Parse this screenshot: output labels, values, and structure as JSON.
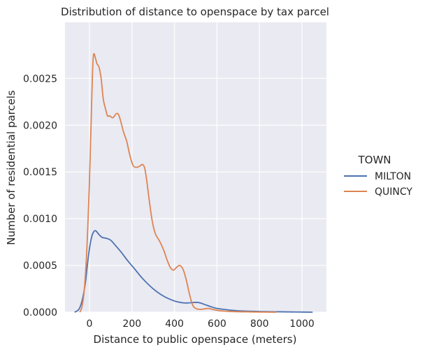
{
  "chart_data": {
    "type": "line",
    "title": "Distribution of distance to openspace by tax parcel",
    "xlabel": "Distance to public openspace (meters)",
    "ylabel": "Number of residential parcels",
    "xlim": [
      -115,
      1115
    ],
    "ylim": [
      0,
      0.0031
    ],
    "xticks": [
      0,
      200,
      400,
      600,
      800,
      1000
    ],
    "xtick_labels": [
      "0",
      "200",
      "400",
      "600",
      "800",
      "1000"
    ],
    "yticks": [
      0.0,
      0.0005,
      0.001,
      0.0015,
      0.002,
      0.0025
    ],
    "ytick_labels": [
      "0.0000",
      "0.0005",
      "0.0010",
      "0.0015",
      "0.0020",
      "0.0025"
    ],
    "grid": true,
    "legend": {
      "title": "TOWN",
      "placement": "right, outside"
    },
    "series": [
      {
        "name": "MILTON",
        "color": "#4c72b0",
        "x": [
          -70,
          -50,
          -35,
          -20,
          -10,
          0,
          10,
          20,
          30,
          45,
          60,
          80,
          100,
          120,
          150,
          180,
          210,
          250,
          300,
          350,
          400,
          440,
          470,
          500,
          520,
          545,
          570,
          600,
          650,
          700,
          760,
          820,
          900,
          980,
          1050
        ],
        "y": [
          0.0,
          3e-05,
          0.00012,
          0.0003,
          0.0005,
          0.00068,
          0.0008,
          0.00086,
          0.00087,
          0.00083,
          0.0008,
          0.00079,
          0.00077,
          0.00072,
          0.00064,
          0.00055,
          0.00047,
          0.00036,
          0.00025,
          0.00017,
          0.00012,
          0.0001,
          0.0001,
          0.000105,
          0.0001,
          8e-05,
          6e-05,
          4e-05,
          2.5e-05,
          1.5e-05,
          1e-05,
          6e-06,
          4e-06,
          2e-06,
          0.0
        ]
      },
      {
        "name": "QUINCY",
        "color": "#dd8452",
        "x": [
          -45,
          -35,
          -25,
          -15,
          -8,
          0,
          5,
          10,
          15,
          20,
          28,
          35,
          45,
          55,
          65,
          75,
          85,
          95,
          110,
          125,
          135,
          145,
          160,
          175,
          190,
          205,
          220,
          235,
          250,
          260,
          270,
          280,
          295,
          310,
          330,
          350,
          365,
          380,
          395,
          410,
          425,
          440,
          455,
          470,
          485,
          500,
          520,
          540,
          560,
          580,
          600,
          630,
          660,
          700,
          740,
          780,
          830,
          880
        ],
        "y": [
          0.0,
          6e-05,
          0.00022,
          0.00055,
          0.0009,
          0.0014,
          0.0018,
          0.0022,
          0.0026,
          0.00276,
          0.00272,
          0.00266,
          0.00262,
          0.0025,
          0.00228,
          0.00218,
          0.0021,
          0.0021,
          0.00208,
          0.00212,
          0.00212,
          0.00206,
          0.00193,
          0.00183,
          0.00168,
          0.00157,
          0.00155,
          0.00156,
          0.00158,
          0.00154,
          0.0014,
          0.00122,
          0.00098,
          0.00084,
          0.00076,
          0.00066,
          0.00056,
          0.00048,
          0.00045,
          0.00048,
          0.0005,
          0.00046,
          0.00035,
          0.0002,
          8e-05,
          4e-05,
          3e-05,
          3.5e-05,
          4e-05,
          3e-05,
          2e-05,
          1.2e-05,
          8e-06,
          5e-06,
          4e-06,
          2e-06,
          1e-06,
          0.0
        ]
      }
    ]
  }
}
